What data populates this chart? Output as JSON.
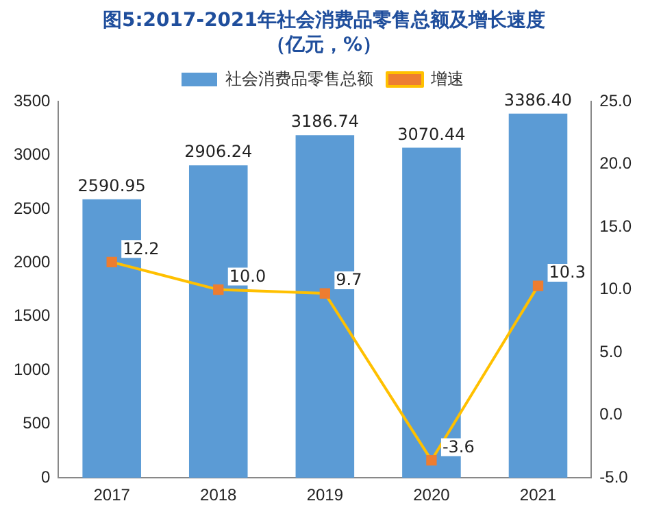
{
  "chart_data": {
    "type": "bar",
    "title": "图5:2017-2021年社会消费品零售总额及增长速度",
    "subtitle": "（亿元，%）",
    "categories": [
      "2017",
      "2018",
      "2019",
      "2020",
      "2021"
    ],
    "series": [
      {
        "name": "社会消费品零售总额",
        "color": "#5b9bd5",
        "values": [
          2590.95,
          2906.24,
          3186.74,
          3070.44,
          3386.4
        ],
        "value_labels": [
          "2590.95",
          "2906.24",
          "3186.74",
          "3070.44",
          "3386.40"
        ]
      },
      {
        "name": "增速",
        "type": "line",
        "axis": "y2",
        "color": "#ffc000",
        "colors": [
          "#ed7d31",
          "#ed7d31",
          "#ed7d31",
          "#ed7d31",
          "#ed7d31"
        ],
        "values": [
          12.2,
          10.0,
          9.7,
          -3.6,
          10.3
        ],
        "value_labels": [
          "12.2",
          "10.0",
          "9.7",
          "-3.6",
          "10.3"
        ]
      }
    ],
    "ylim": [
      0,
      3500
    ],
    "yticks": [
      0,
      500,
      1000,
      1500,
      2000,
      2500,
      3000,
      3500
    ],
    "y2lim": [
      -5,
      25
    ],
    "y2ticks": [
      {
        "value": -5,
        "label": "-5.0"
      },
      {
        "value": 0,
        "label": "0.0"
      },
      {
        "value": 5,
        "label": "5.0"
      },
      {
        "value": 10,
        "label": "10.0"
      },
      {
        "value": 15,
        "label": "15.0"
      },
      {
        "value": 20,
        "label": "20.0"
      },
      {
        "value": 25,
        "label": "25.0"
      }
    ],
    "legend": "top",
    "grid": false,
    "marker": "square",
    "line_style": "solid"
  }
}
